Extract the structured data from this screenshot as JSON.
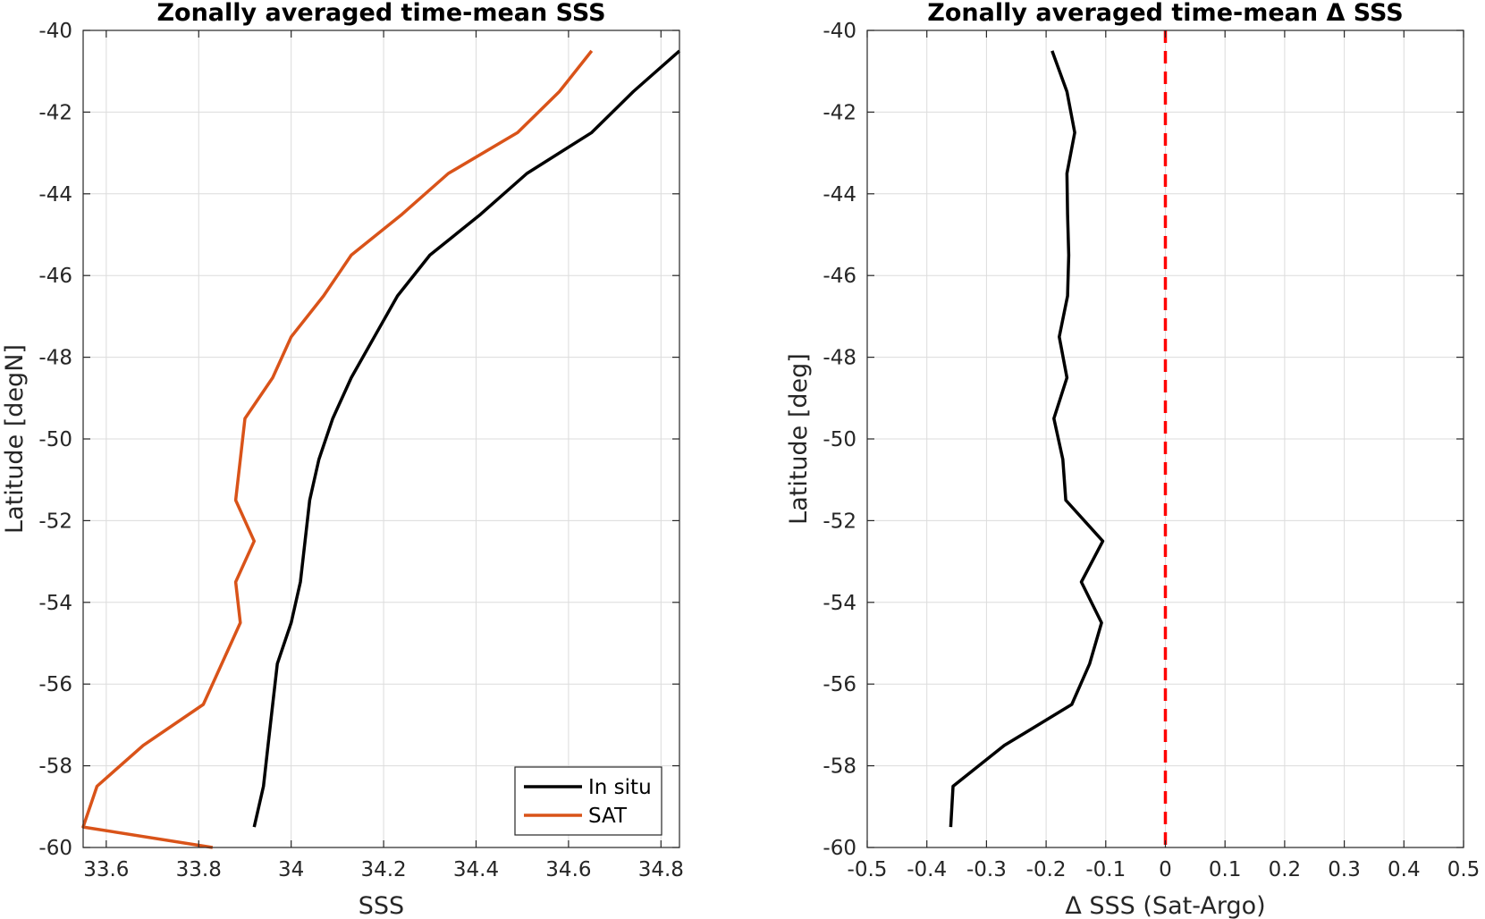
{
  "chart_data": [
    {
      "type": "line",
      "title": "Zonally averaged time-mean SSS",
      "xlabel": "SSS",
      "ylabel": "Latitude [degN]",
      "xlim": [
        33.55,
        34.84
      ],
      "ylim": [
        -60,
        -40
      ],
      "xticks": [
        33.6,
        33.8,
        34,
        34.2,
        34.4,
        34.6,
        34.8
      ],
      "xtick_labels": [
        "33.6",
        "33.8",
        "34",
        "34.2",
        "34.4",
        "34.6",
        "34.8"
      ],
      "yticks": [
        -60,
        -58,
        -56,
        -54,
        -52,
        -50,
        -48,
        -46,
        -44,
        -42,
        -40
      ],
      "ytick_labels": [
        "-60",
        "-58",
        "-56",
        "-54",
        "-52",
        "-50",
        "-48",
        "-46",
        "-44",
        "-42",
        "-40"
      ],
      "grid": true,
      "legend": "bottom-right",
      "series": [
        {
          "name": "In situ",
          "color": "#000000",
          "points": [
            [
              34.84,
              -40.5
            ],
            [
              34.74,
              -41.5
            ],
            [
              34.65,
              -42.5
            ],
            [
              34.51,
              -43.5
            ],
            [
              34.41,
              -44.5
            ],
            [
              34.3,
              -45.5
            ],
            [
              34.23,
              -46.5
            ],
            [
              34.18,
              -47.5
            ],
            [
              34.13,
              -48.5
            ],
            [
              34.09,
              -49.5
            ],
            [
              34.06,
              -50.5
            ],
            [
              34.04,
              -51.5
            ],
            [
              34.03,
              -52.5
            ],
            [
              34.02,
              -53.5
            ],
            [
              34.0,
              -54.5
            ],
            [
              33.97,
              -55.5
            ],
            [
              33.96,
              -56.5
            ],
            [
              33.95,
              -57.5
            ],
            [
              33.94,
              -58.5
            ],
            [
              33.92,
              -59.5
            ]
          ]
        },
        {
          "name": "SAT",
          "color": "#D95319",
          "points": [
            [
              34.65,
              -40.5
            ],
            [
              34.58,
              -41.5
            ],
            [
              34.49,
              -42.5
            ],
            [
              34.34,
              -43.5
            ],
            [
              34.24,
              -44.5
            ],
            [
              34.13,
              -45.5
            ],
            [
              34.07,
              -46.5
            ],
            [
              34.0,
              -47.5
            ],
            [
              33.96,
              -48.5
            ],
            [
              33.9,
              -49.5
            ],
            [
              33.89,
              -50.5
            ],
            [
              33.88,
              -51.5
            ],
            [
              33.92,
              -52.5
            ],
            [
              33.88,
              -53.5
            ],
            [
              33.89,
              -54.5
            ],
            [
              33.85,
              -55.5
            ],
            [
              33.81,
              -56.5
            ],
            [
              33.68,
              -57.5
            ],
            [
              33.58,
              -58.5
            ],
            [
              33.55,
              -59.5
            ],
            [
              33.83,
              -60.0
            ]
          ]
        }
      ]
    },
    {
      "type": "line",
      "title": "Zonally averaged time-mean Δ SSS",
      "xlabel": "Δ SSS (Sat-Argo)",
      "ylabel": "Latitude [deg]",
      "xlim": [
        -0.5,
        0.5
      ],
      "ylim": [
        -60,
        -40
      ],
      "xticks": [
        -0.5,
        -0.4,
        -0.3,
        -0.2,
        -0.1,
        0,
        0.1,
        0.2,
        0.3,
        0.4,
        0.5
      ],
      "xtick_labels": [
        "-0.5",
        "-0.4",
        "-0.3",
        "-0.2",
        "-0.1",
        "0",
        "0.1",
        "0.2",
        "0.3",
        "0.4",
        "0.5"
      ],
      "yticks": [
        -60,
        -58,
        -56,
        -54,
        -52,
        -50,
        -48,
        -46,
        -44,
        -42,
        -40
      ],
      "ytick_labels": [
        "-60",
        "-58",
        "-56",
        "-54",
        "-52",
        "-50",
        "-48",
        "-46",
        "-44",
        "-42",
        "-40"
      ],
      "grid": true,
      "reference_line": {
        "x": 0,
        "color": "#FF0000",
        "style": "dashed"
      },
      "series": [
        {
          "color": "#000000",
          "points": [
            [
              -0.19,
              -40.5
            ],
            [
              -0.165,
              -41.5
            ],
            [
              -0.152,
              -42.5
            ],
            [
              -0.165,
              -43.5
            ],
            [
              -0.164,
              -44.5
            ],
            [
              -0.162,
              -45.5
            ],
            [
              -0.164,
              -46.5
            ],
            [
              -0.178,
              -47.5
            ],
            [
              -0.165,
              -48.5
            ],
            [
              -0.187,
              -49.5
            ],
            [
              -0.172,
              -50.5
            ],
            [
              -0.167,
              -51.5
            ],
            [
              -0.105,
              -52.5
            ],
            [
              -0.141,
              -53.5
            ],
            [
              -0.107,
              -54.5
            ],
            [
              -0.127,
              -55.5
            ],
            [
              -0.157,
              -56.5
            ],
            [
              -0.27,
              -57.5
            ],
            [
              -0.356,
              -58.5
            ],
            [
              -0.36,
              -59.5
            ]
          ]
        }
      ]
    }
  ]
}
